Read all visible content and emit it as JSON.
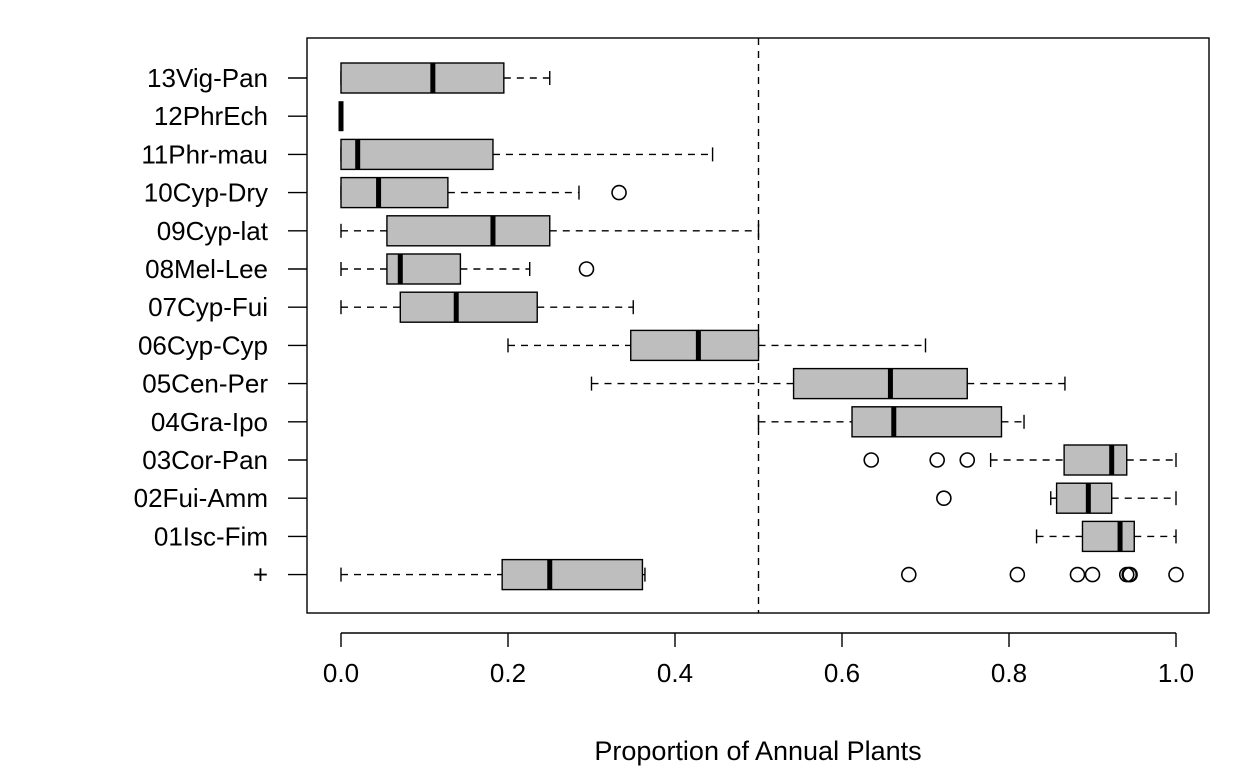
{
  "chart_data": {
    "type": "boxplot",
    "orientation": "horizontal",
    "xlabel": "Proportion of Annual Plants",
    "ylabel": "",
    "title": "",
    "xlim": [
      -0.04,
      1.04
    ],
    "xticks": [
      0.0,
      0.2,
      0.4,
      0.6,
      0.8,
      1.0
    ],
    "xtick_labels": [
      "0.0",
      "0.2",
      "0.4",
      "0.6",
      "0.8",
      "1.0"
    ],
    "reference_line": {
      "x": 0.5,
      "style": "dashed"
    },
    "box_color": "#bebebe",
    "grid": false,
    "categories": [
      "13Vig-Pan",
      "12PhrEch",
      "11Phr-mau",
      "10Cyp-Dry",
      "09Cyp-lat",
      "08Mel-Lee",
      "07Cyp-Fui",
      "06Cyp-Cyp",
      "05Cen-Per",
      "04Gra-Ipo",
      "03Cor-Pan",
      "02Fui-Amm",
      "01Isc-Fim",
      "+"
    ],
    "boxes": [
      {
        "label": "13Vig-Pan",
        "min": 0.0,
        "q1": 0.0,
        "median": 0.11,
        "q3": 0.195,
        "max": 0.25,
        "outliers": []
      },
      {
        "label": "12PhrEch",
        "min": 0.0,
        "q1": 0.0,
        "median": 0.0,
        "q3": 0.0,
        "max": 0.0,
        "outliers": []
      },
      {
        "label": "11Phr-mau",
        "min": 0.0,
        "q1": 0.0,
        "median": 0.02,
        "q3": 0.182,
        "max": 0.445,
        "outliers": []
      },
      {
        "label": "10Cyp-Dry",
        "min": 0.0,
        "q1": 0.0,
        "median": 0.045,
        "q3": 0.128,
        "max": 0.285,
        "outliers": [
          0.333
        ]
      },
      {
        "label": "09Cyp-lat",
        "min": 0.0,
        "q1": 0.055,
        "median": 0.182,
        "q3": 0.25,
        "max": 0.5,
        "outliers": []
      },
      {
        "label": "08Mel-Lee",
        "min": 0.0,
        "q1": 0.055,
        "median": 0.071,
        "q3": 0.143,
        "max": 0.226,
        "outliers": [
          0.294
        ]
      },
      {
        "label": "07Cyp-Fui",
        "min": 0.0,
        "q1": 0.071,
        "median": 0.138,
        "q3": 0.235,
        "max": 0.35,
        "outliers": []
      },
      {
        "label": "06Cyp-Cyp",
        "min": 0.2,
        "q1": 0.347,
        "median": 0.428,
        "q3": 0.5,
        "max": 0.7,
        "outliers": []
      },
      {
        "label": "05Cen-Per",
        "min": 0.3,
        "q1": 0.542,
        "median": 0.658,
        "q3": 0.75,
        "max": 0.867,
        "outliers": []
      },
      {
        "label": "04Gra-Ipo",
        "min": 0.5,
        "q1": 0.612,
        "median": 0.662,
        "q3": 0.791,
        "max": 0.818,
        "outliers": []
      },
      {
        "label": "03Cor-Pan",
        "min": 0.778,
        "q1": 0.866,
        "median": 0.923,
        "q3": 0.941,
        "max": 1.0,
        "outliers": [
          0.635,
          0.714,
          0.75
        ]
      },
      {
        "label": "02Fui-Amm",
        "min": 0.85,
        "q1": 0.857,
        "median": 0.895,
        "q3": 0.923,
        "max": 1.0,
        "outliers": [
          0.722
        ]
      },
      {
        "label": "01Isc-Fim",
        "min": 0.833,
        "q1": 0.888,
        "median": 0.933,
        "q3": 0.95,
        "max": 1.0,
        "outliers": []
      },
      {
        "label": "+",
        "min": 0.0,
        "q1": 0.193,
        "median": 0.25,
        "q3": 0.361,
        "max": 0.364,
        "outliers": [
          0.68,
          0.81,
          0.882,
          0.9,
          0.941,
          0.944,
          0.945,
          1.0
        ]
      }
    ]
  }
}
